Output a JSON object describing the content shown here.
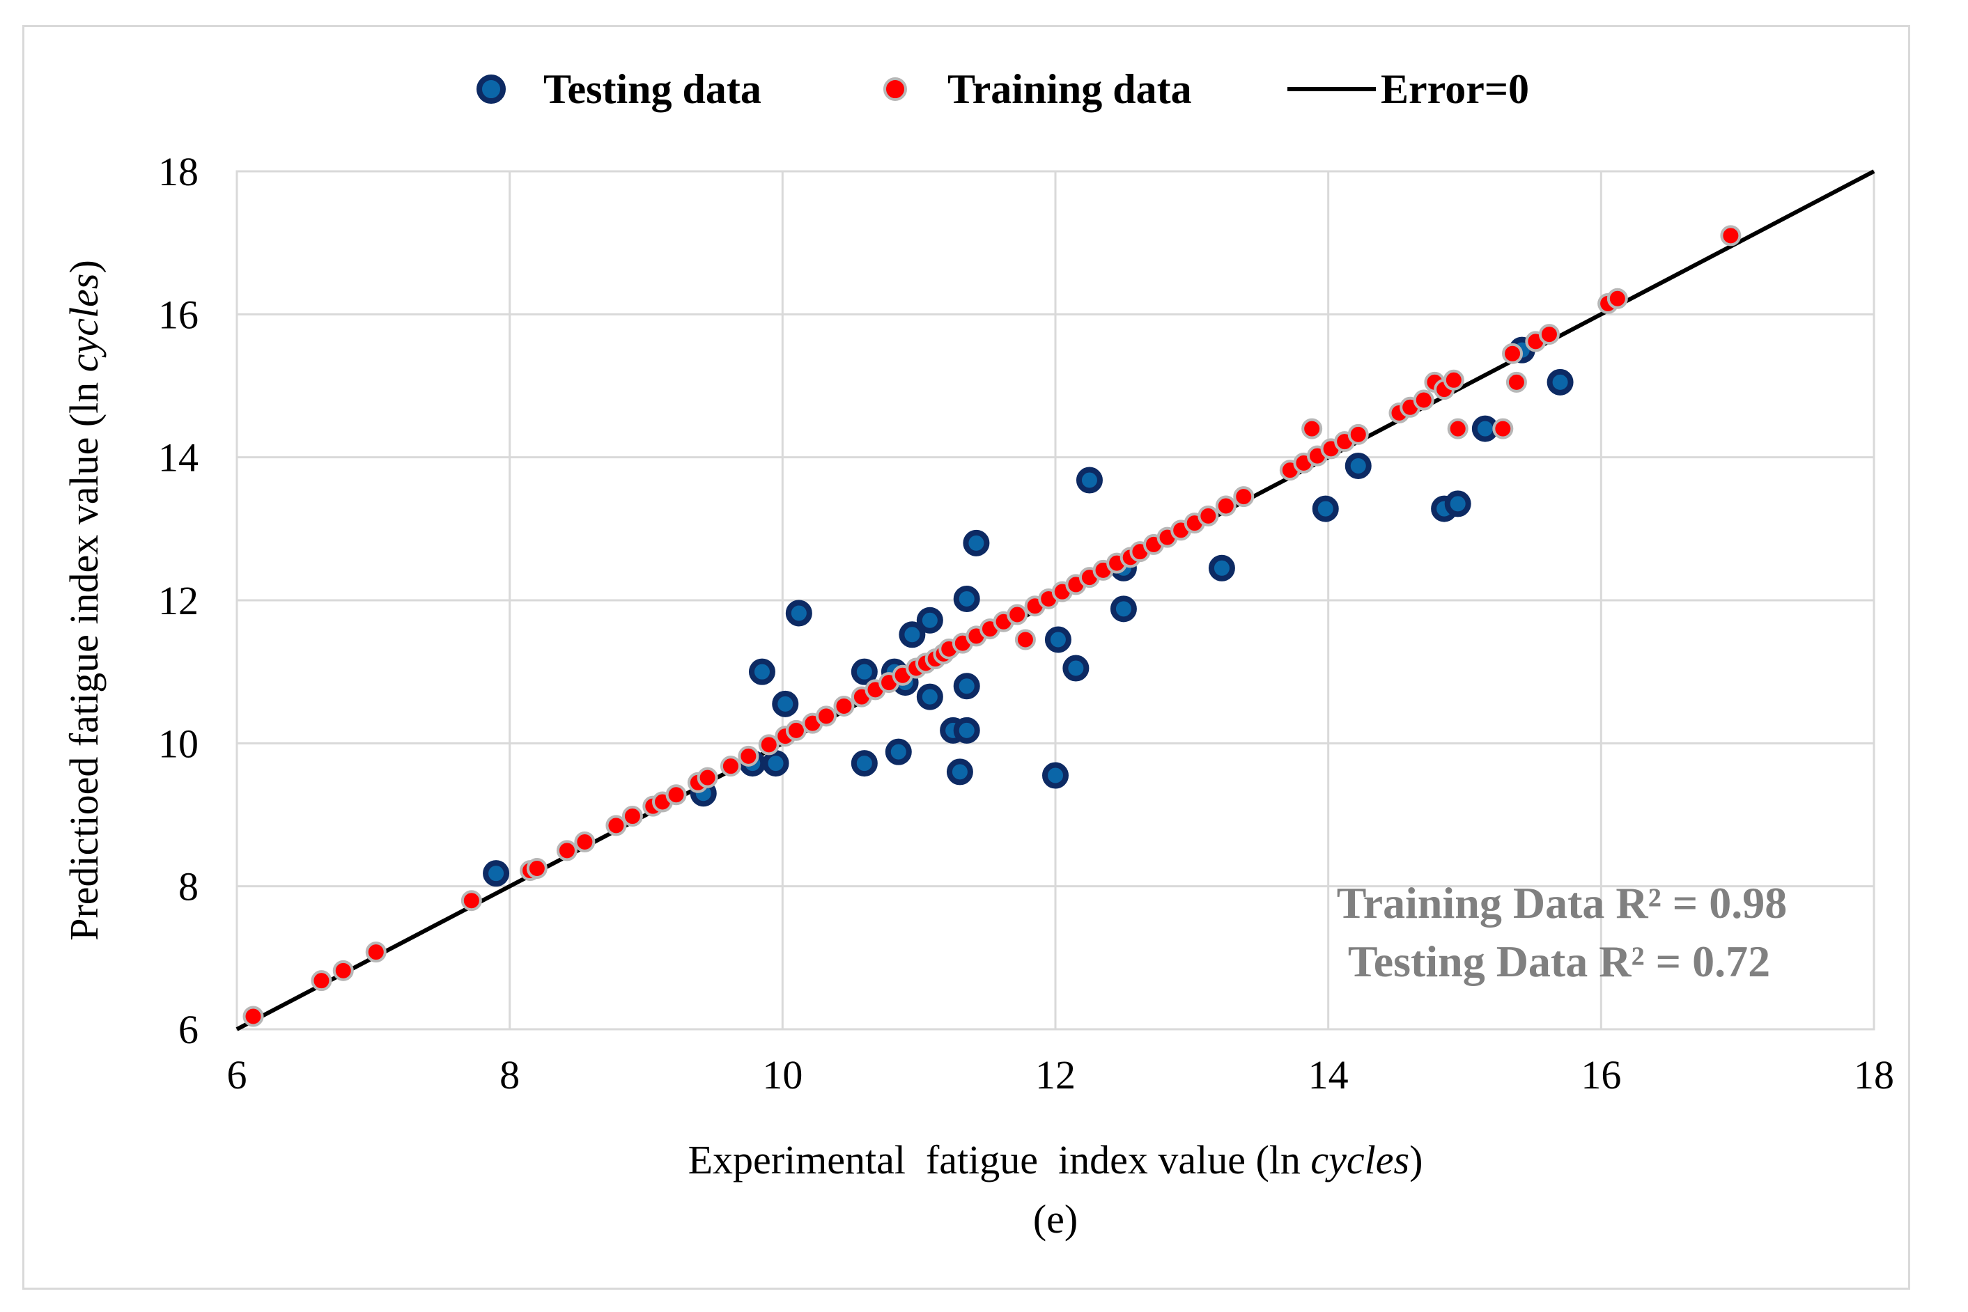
{
  "chart_data": {
    "type": "scatter",
    "caption": "(e)",
    "xlabel_prefix": "Experimental  fatigue  index value (ln ",
    "xlabel_italic": "cycles",
    "xlabel_suffix": ")",
    "ylabel_prefix": "Predictioed fatigue index value (ln ",
    "ylabel_italic": "cycles",
    "ylabel_suffix": ")",
    "xlim": [
      6,
      18
    ],
    "ylim": [
      6,
      18
    ],
    "xticks": [
      6,
      8,
      10,
      12,
      14,
      16,
      18
    ],
    "yticks": [
      6,
      8,
      10,
      12,
      14,
      16,
      18
    ],
    "grid": true,
    "legend_position": "top",
    "legend": {
      "testing": "Testing data",
      "training": "Training data",
      "line": "Error=0"
    },
    "annotations": {
      "training_r2": "Training Data R² = 0.98",
      "testing_r2": "Testing Data  R² = 0.72"
    },
    "colors": {
      "testing_fill": "#0b66a8",
      "testing_edge": "#0d2a63",
      "training_fill": "#ff0000",
      "training_edge": "#b7b7b7",
      "line": "#000000",
      "grid": "#d9d9d9",
      "annotation": "#808080"
    },
    "series": [
      {
        "name": "Testing data",
        "points": [
          [
            7.9,
            8.18
          ],
          [
            9.42,
            9.3
          ],
          [
            9.78,
            9.72
          ],
          [
            9.95,
            9.72
          ],
          [
            9.85,
            11.0
          ],
          [
            10.02,
            10.55
          ],
          [
            10.12,
            11.82
          ],
          [
            10.6,
            9.72
          ],
          [
            10.6,
            11.0
          ],
          [
            10.85,
            9.88
          ],
          [
            10.82,
            11.0
          ],
          [
            10.9,
            10.85
          ],
          [
            10.95,
            11.52
          ],
          [
            11.08,
            11.72
          ],
          [
            11.08,
            10.65
          ],
          [
            11.25,
            10.18
          ],
          [
            11.35,
            10.18
          ],
          [
            11.3,
            9.6
          ],
          [
            11.35,
            10.8
          ],
          [
            11.35,
            12.02
          ],
          [
            11.42,
            12.8
          ],
          [
            12.0,
            9.55
          ],
          [
            12.02,
            11.45
          ],
          [
            12.15,
            11.05
          ],
          [
            12.25,
            13.68
          ],
          [
            12.5,
            12.45
          ],
          [
            12.5,
            11.88
          ],
          [
            13.22,
            12.45
          ],
          [
            13.98,
            13.28
          ],
          [
            14.22,
            13.88
          ],
          [
            14.85,
            13.28
          ],
          [
            14.95,
            13.35
          ],
          [
            15.15,
            14.4
          ],
          [
            15.42,
            15.5
          ],
          [
            15.7,
            15.05
          ]
        ]
      },
      {
        "name": "Training data",
        "points": [
          [
            6.12,
            6.18
          ],
          [
            6.62,
            6.68
          ],
          [
            6.78,
            6.82
          ],
          [
            7.02,
            7.08
          ],
          [
            7.72,
            7.8
          ],
          [
            8.15,
            8.22
          ],
          [
            8.2,
            8.25
          ],
          [
            8.42,
            8.5
          ],
          [
            8.55,
            8.62
          ],
          [
            8.78,
            8.85
          ],
          [
            8.9,
            8.98
          ],
          [
            9.05,
            9.12
          ],
          [
            9.12,
            9.18
          ],
          [
            9.22,
            9.28
          ],
          [
            9.38,
            9.45
          ],
          [
            9.45,
            9.52
          ],
          [
            9.62,
            9.68
          ],
          [
            9.75,
            9.82
          ],
          [
            9.9,
            9.98
          ],
          [
            10.02,
            10.1
          ],
          [
            10.1,
            10.18
          ],
          [
            10.22,
            10.28
          ],
          [
            10.32,
            10.38
          ],
          [
            10.45,
            10.52
          ],
          [
            10.58,
            10.65
          ],
          [
            10.68,
            10.75
          ],
          [
            10.78,
            10.85
          ],
          [
            10.88,
            10.95
          ],
          [
            10.98,
            11.05
          ],
          [
            11.05,
            11.12
          ],
          [
            11.12,
            11.18
          ],
          [
            11.18,
            11.25
          ],
          [
            11.22,
            11.32
          ],
          [
            11.32,
            11.4
          ],
          [
            11.42,
            11.5
          ],
          [
            11.52,
            11.6
          ],
          [
            11.62,
            11.7
          ],
          [
            11.72,
            11.8
          ],
          [
            11.78,
            11.45
          ],
          [
            11.85,
            11.92
          ],
          [
            11.95,
            12.02
          ],
          [
            12.05,
            12.12
          ],
          [
            12.15,
            12.22
          ],
          [
            12.25,
            12.32
          ],
          [
            12.35,
            12.42
          ],
          [
            12.45,
            12.52
          ],
          [
            12.55,
            12.6
          ],
          [
            12.62,
            12.68
          ],
          [
            12.72,
            12.78
          ],
          [
            12.82,
            12.88
          ],
          [
            12.92,
            12.98
          ],
          [
            13.02,
            13.08
          ],
          [
            13.12,
            13.18
          ],
          [
            13.25,
            13.32
          ],
          [
            13.38,
            13.45
          ],
          [
            13.72,
            13.82
          ],
          [
            13.82,
            13.92
          ],
          [
            13.88,
            14.4
          ],
          [
            13.92,
            14.02
          ],
          [
            14.02,
            14.12
          ],
          [
            14.12,
            14.22
          ],
          [
            14.22,
            14.32
          ],
          [
            14.52,
            14.62
          ],
          [
            14.6,
            14.7
          ],
          [
            14.7,
            14.8
          ],
          [
            14.78,
            15.05
          ],
          [
            14.85,
            14.95
          ],
          [
            14.92,
            15.08
          ],
          [
            14.95,
            14.4
          ],
          [
            15.28,
            14.4
          ],
          [
            15.35,
            15.45
          ],
          [
            15.38,
            15.05
          ],
          [
            15.52,
            15.62
          ],
          [
            15.62,
            15.72
          ],
          [
            16.05,
            16.15
          ],
          [
            16.12,
            16.22
          ],
          [
            16.95,
            17.1
          ]
        ]
      }
    ]
  }
}
